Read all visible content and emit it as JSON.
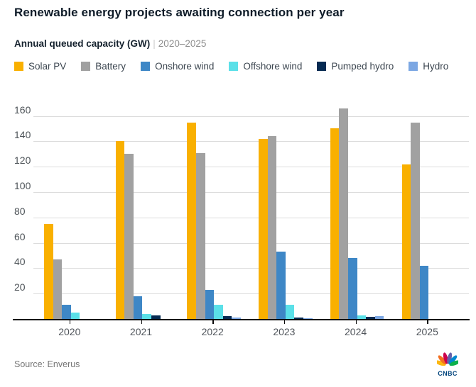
{
  "header": {
    "title": "Renewable energy projects awaiting connection per year",
    "subtitle_bold": "Annual queued capacity (GW)",
    "subtitle_sep": "|",
    "subtitle_range": "2020–2025"
  },
  "chart_data": {
    "type": "bar",
    "title": "Renewable energy projects awaiting connection per year",
    "ylabel": "Annual queued capacity (GW)",
    "xlabel": "",
    "categories": [
      "2020",
      "2021",
      "2022",
      "2023",
      "2024",
      "2025"
    ],
    "series": [
      {
        "name": "Solar PV",
        "color": "#f9b000",
        "values": [
          75,
          140,
          155,
          142,
          150,
          122
        ]
      },
      {
        "name": "Battery",
        "color": "#a1a1a1",
        "values": [
          47,
          130,
          131,
          144,
          166,
          155
        ]
      },
      {
        "name": "Onshore wind",
        "color": "#3e87c6",
        "values": [
          11,
          18,
          23,
          53,
          48,
          42
        ]
      },
      {
        "name": "Offshore wind",
        "color": "#5be0e8",
        "values": [
          5,
          4,
          11,
          11,
          3,
          0
        ]
      },
      {
        "name": "Pumped hydro",
        "color": "#062a52",
        "values": [
          0,
          3,
          2,
          1,
          1.5,
          0
        ]
      },
      {
        "name": "Hydro",
        "color": "#7ca7e3",
        "values": [
          0,
          0,
          1,
          0.5,
          2.5,
          0
        ]
      }
    ],
    "ylim": [
      0,
      173
    ],
    "y_ticks": [
      20,
      40,
      60,
      80,
      100,
      120,
      140,
      160
    ],
    "grid": true,
    "legend_position": "top"
  },
  "colors": {
    "title_text": "#0e1b28",
    "axis_line": "#0a0a0a",
    "gridline": "#dcdcdc",
    "muted_text": "#8e8e8e"
  },
  "footer": {
    "source": "Source: Enverus",
    "logo_text": "CNBC"
  },
  "logo_feather_colors": [
    "#fcb711",
    "#f37021",
    "#cc004c",
    "#6460aa",
    "#0089d0",
    "#0db14b"
  ]
}
